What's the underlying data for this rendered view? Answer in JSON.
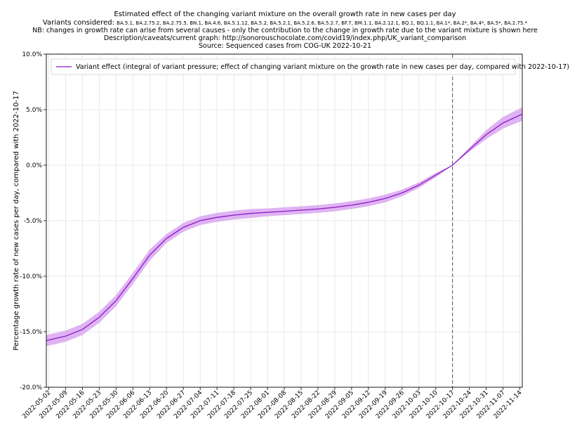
{
  "chart_data": {
    "type": "line",
    "title": "Estimated effect of the changing variant mixture on the overall growth rate in new cases per day",
    "subtitle_prefix": "Variants considered: ",
    "variants_list": "BA.5.1, BA.2.75.2, BA.2.75.5, BN.1, BA.4.6, BA.5.1.12, BA.5.2, BA.5.2.1, BA.5.2.6, BA.5.2.7, BF.7, BM.1.1, BA.2.12.1, BQ.1, BQ.1.1, BA.1*, BA.2*, BA.4*, BA.5*, BA.2.75.*",
    "note": "NB: changes in growth rate can arise from several causes - only the contribution to the change in growth rate due to the variant mixture is shown here",
    "description": "Description/caveats/current graph: http://sonorouschocolate.com/covid19/index.php/UK_variant_comparison",
    "source": "Source: Sequenced cases from COG-UK 2022-10-21",
    "ylabel": "Percentage growth rate of new cases per day, compared with 2022-10-17",
    "xlabel": "",
    "ylim": [
      -20,
      10
    ],
    "yticks": [
      -20,
      -15,
      -10,
      -5,
      0,
      5,
      10
    ],
    "ytick_labels": [
      "-20.0%",
      "-15.0%",
      "-10.0%",
      "-5.0%",
      "0.0%",
      "5.0%",
      "10.0%"
    ],
    "xlim": [
      "2022-05-01",
      "2022-11-15"
    ],
    "xtick_labels": [
      "2022-05-02",
      "2022-05-09",
      "2022-05-16",
      "2022-05-23",
      "2022-05-30",
      "2022-06-06",
      "2022-06-13",
      "2022-06-20",
      "2022-06-27",
      "2022-07-04",
      "2022-07-11",
      "2022-07-18",
      "2022-07-25",
      "2022-08-01",
      "2022-08-08",
      "2022-08-15",
      "2022-08-22",
      "2022-08-29",
      "2022-09-05",
      "2022-09-12",
      "2022-09-19",
      "2022-09-26",
      "2022-10-03",
      "2022-10-10",
      "2022-10-17",
      "2022-10-24",
      "2022-10-31",
      "2022-11-07",
      "2022-11-14"
    ],
    "grid": true,
    "legend_placement": "top-left",
    "reference_line_date": "2022-10-17",
    "series": [
      {
        "name": "Variant effect (integral of variant pressure; effect of changing variant mixture on the growth rate in new cases per day, compared with 2022-10-17)",
        "color": "#8b1ac8",
        "band_color": "#d9a6f0",
        "x": [
          "2022-05-01",
          "2022-05-09",
          "2022-05-16",
          "2022-05-23",
          "2022-05-30",
          "2022-06-06",
          "2022-06-13",
          "2022-06-20",
          "2022-06-27",
          "2022-07-04",
          "2022-07-11",
          "2022-07-18",
          "2022-07-25",
          "2022-08-01",
          "2022-08-08",
          "2022-08-15",
          "2022-08-22",
          "2022-08-29",
          "2022-09-05",
          "2022-09-12",
          "2022-09-19",
          "2022-09-26",
          "2022-10-03",
          "2022-10-10",
          "2022-10-17",
          "2022-10-24",
          "2022-10-31",
          "2022-11-07",
          "2022-11-15"
        ],
        "values": [
          -15.8,
          -15.4,
          -14.8,
          -13.7,
          -12.2,
          -10.2,
          -8.1,
          -6.6,
          -5.6,
          -5.0,
          -4.7,
          -4.5,
          -4.35,
          -4.25,
          -4.15,
          -4.05,
          -3.95,
          -3.8,
          -3.6,
          -3.35,
          -3.0,
          -2.5,
          -1.8,
          -0.9,
          0.0,
          1.4,
          2.75,
          3.8,
          4.6
        ],
        "lower": [
          -16.3,
          -15.9,
          -15.3,
          -14.2,
          -12.7,
          -10.7,
          -8.6,
          -7.0,
          -6.0,
          -5.4,
          -5.1,
          -4.9,
          -4.75,
          -4.6,
          -4.5,
          -4.4,
          -4.3,
          -4.15,
          -3.95,
          -3.7,
          -3.35,
          -2.8,
          -2.05,
          -1.1,
          0.0,
          1.2,
          2.35,
          3.3,
          4.0
        ],
        "upper": [
          -15.3,
          -14.9,
          -14.3,
          -13.2,
          -11.7,
          -9.7,
          -7.6,
          -6.2,
          -5.2,
          -4.6,
          -4.3,
          -4.1,
          -3.95,
          -3.9,
          -3.8,
          -3.7,
          -3.6,
          -3.45,
          -3.25,
          -3.0,
          -2.65,
          -2.2,
          -1.55,
          -0.7,
          0.0,
          1.6,
          3.15,
          4.35,
          5.2
        ]
      }
    ]
  }
}
